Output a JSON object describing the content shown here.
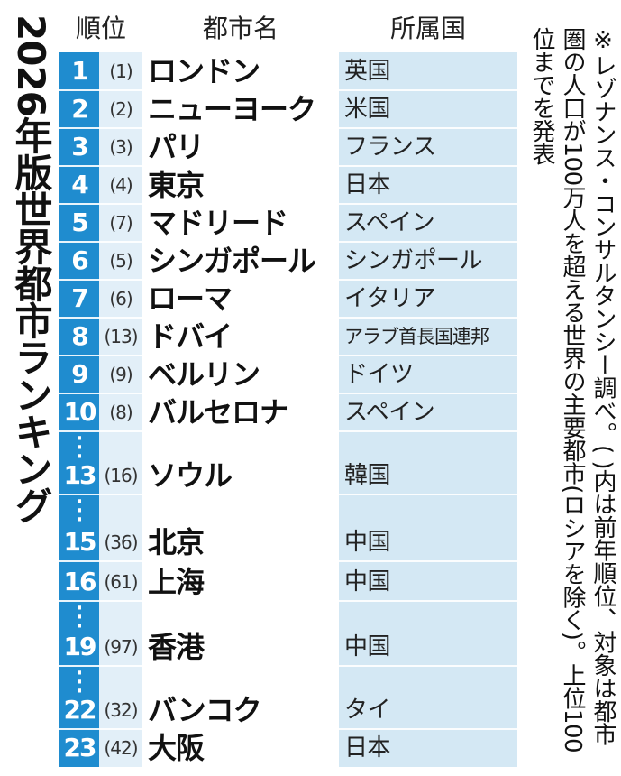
{
  "title": "2026年版世界都市ランキング",
  "note": "※レゾナンス・コンサルタンシー調べ。( )内は前年順位、対象は都市圏の人口が100万人を超える世界の主要都市(ロシアを除く)。上位100位までを発表",
  "headers": {
    "rank": "順位",
    "city": "都市名",
    "country": "所属国"
  },
  "rows": [
    {
      "rank": "1",
      "prev": "(1)",
      "city": "ロンドン",
      "country": "英国"
    },
    {
      "rank": "2",
      "prev": "(2)",
      "city": "ニューヨーク",
      "country": "米国"
    },
    {
      "rank": "3",
      "prev": "(3)",
      "city": "パリ",
      "country": "フランス"
    },
    {
      "rank": "4",
      "prev": "(4)",
      "city": "東京",
      "country": "日本"
    },
    {
      "rank": "5",
      "prev": "(7)",
      "city": "マドリード",
      "country": "スペイン"
    },
    {
      "rank": "6",
      "prev": "(5)",
      "city": "シンガポール",
      "country": "シンガポール"
    },
    {
      "rank": "7",
      "prev": "(6)",
      "city": "ローマ",
      "country": "イタリア"
    },
    {
      "rank": "8",
      "prev": "(13)",
      "city": "ドバイ",
      "country": "アラブ首長国連邦"
    },
    {
      "rank": "9",
      "prev": "(9)",
      "city": "ベルリン",
      "country": "ドイツ"
    },
    {
      "rank": "10",
      "prev": "(8)",
      "city": "バルセロナ",
      "country": "スペイン"
    },
    {
      "rank": "13",
      "prev": "(16)",
      "city": "ソウル",
      "country": "韓国"
    },
    {
      "rank": "15",
      "prev": "(36)",
      "city": "北京",
      "country": "中国"
    },
    {
      "rank": "16",
      "prev": "(61)",
      "city": "上海",
      "country": "中国"
    },
    {
      "rank": "19",
      "prev": "(97)",
      "city": "香港",
      "country": "中国"
    },
    {
      "rank": "22",
      "prev": "(32)",
      "city": "バンコク",
      "country": "タイ"
    },
    {
      "rank": "23",
      "prev": "(42)",
      "city": "大阪",
      "country": "日本"
    }
  ]
}
